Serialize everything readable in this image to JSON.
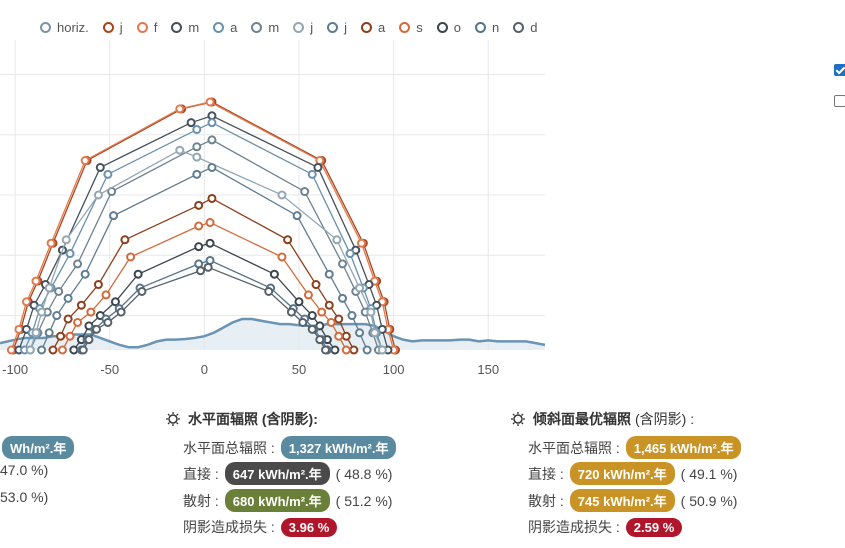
{
  "legend": [
    {
      "name": "horiz.",
      "color": "#7b95a8"
    },
    {
      "name": "j",
      "color": "#a9441a"
    },
    {
      "name": "f",
      "color": "#e07a4e"
    },
    {
      "name": "m",
      "color": "#44505a"
    },
    {
      "name": "a",
      "color": "#6a91ac"
    },
    {
      "name": "m",
      "color": "#6f828f"
    },
    {
      "name": "j",
      "color": "#93a6b3"
    },
    {
      "name": "j",
      "color": "#5f7c91"
    },
    {
      "name": "a",
      "color": "#8b3f1c"
    },
    {
      "name": "s",
      "color": "#d36a3c"
    },
    {
      "name": "o",
      "color": "#3b454d"
    },
    {
      "name": "n",
      "color": "#56738a"
    },
    {
      "name": "d",
      "color": "#57616a"
    }
  ],
  "chart_data": {
    "type": "line",
    "x_ticks": [
      -100,
      -50,
      0,
      50,
      100,
      150
    ],
    "xlim": [
      -108,
      180
    ],
    "ylim": [
      0,
      90
    ],
    "grid": true,
    "horizon": {
      "name": "horiz.",
      "x": [
        -108,
        -100,
        -95,
        -90,
        -85,
        -80,
        -75,
        -70,
        -65,
        -60,
        -55,
        -50,
        -45,
        -40,
        -35,
        -30,
        -25,
        -20,
        -15,
        -10,
        -5,
        0,
        5,
        10,
        15,
        20,
        25,
        30,
        35,
        40,
        45,
        50,
        55,
        60,
        65,
        70,
        75,
        80,
        85,
        90,
        95,
        100,
        105,
        110,
        115,
        120,
        125,
        130,
        135,
        140,
        145,
        150,
        155,
        160,
        165,
        170,
        175,
        180
      ],
      "y": [
        2,
        3,
        3.5,
        3.5,
        3.5,
        4,
        4,
        4.5,
        4.5,
        4.5,
        3.5,
        2.5,
        1.5,
        0.8,
        0.8,
        1.5,
        2.5,
        3,
        3,
        3.2,
        3.5,
        4,
        5,
        6.5,
        8,
        9,
        9,
        8.5,
        8,
        7.5,
        7.5,
        7.2,
        7,
        7,
        7.5,
        7.5,
        7.5,
        7.5,
        7.5,
        7,
        5.5,
        4,
        3,
        2.5,
        2.8,
        2.8,
        2.8,
        2.8,
        3,
        3,
        2.5,
        2.8,
        2.5,
        2.5,
        2.5,
        2.5,
        2,
        1.5
      ]
    },
    "series": [
      {
        "x": [
          -101,
          -97,
          -93,
          -88,
          -80,
          -62,
          -12,
          4,
          62,
          84,
          91,
          95,
          98,
          101
        ],
        "y": [
          0,
          6,
          14,
          20,
          31,
          55,
          70,
          72,
          55,
          31,
          20,
          14,
          6,
          0
        ]
      },
      {
        "x": [
          -102,
          -98,
          -94,
          -89,
          -81,
          -63,
          -13,
          3,
          61,
          83,
          90,
          94,
          97,
          100
        ],
        "y": [
          0,
          6,
          14,
          20,
          31,
          55,
          70,
          72,
          55,
          31,
          20,
          14,
          6,
          0
        ]
      },
      {
        "x": [
          -98,
          -94,
          -90,
          -84,
          -75,
          -55,
          -7,
          4,
          60,
          80,
          87,
          91,
          94,
          97
        ],
        "y": [
          0,
          6,
          13,
          19,
          29,
          53,
          66,
          68,
          53,
          29,
          19,
          13,
          6,
          0
        ]
      },
      {
        "x": [
          -95,
          -91,
          -87,
          -81,
          -71,
          -51,
          -4,
          4,
          57,
          77,
          84,
          88,
          91,
          94
        ],
        "y": [
          0,
          5,
          12,
          18,
          28,
          51,
          64,
          66,
          51,
          28,
          18,
          12,
          5,
          0
        ]
      },
      {
        "x": [
          -92,
          -88,
          -83,
          -77,
          -67,
          -49,
          -4,
          4,
          53,
          73,
          80,
          85,
          89,
          92
        ],
        "y": [
          0,
          5,
          11,
          17,
          25,
          46,
          59,
          61,
          46,
          25,
          17,
          11,
          5,
          0
        ]
      },
      {
        "x": [
          -92,
          -89,
          -86,
          -82,
          -73,
          -56,
          -13,
          -4,
          41,
          70,
          82,
          88,
          90,
          94
        ],
        "y": [
          0,
          5,
          11,
          18,
          32,
          45,
          58,
          56,
          45,
          32,
          18,
          11,
          5,
          0
        ]
      },
      {
        "x": [
          -86,
          -82,
          -78,
          -72,
          -63,
          -48,
          -4,
          4,
          49,
          66,
          73,
          78,
          82,
          86
        ],
        "y": [
          0,
          5,
          10,
          15,
          22,
          39,
          51,
          53,
          39,
          22,
          15,
          10,
          5,
          0
        ]
      },
      {
        "x": [
          -80,
          -76,
          -72,
          -65,
          -56,
          -42,
          -3,
          4,
          44,
          59,
          66,
          71,
          75,
          79
        ],
        "y": [
          0,
          4,
          9,
          13,
          19,
          32,
          42,
          44,
          32,
          19,
          13,
          9,
          4,
          0
        ]
      },
      {
        "x": [
          -75,
          -71,
          -67,
          -60,
          -52,
          -39,
          -3,
          3,
          41,
          55,
          62,
          67,
          71,
          75
        ],
        "y": [
          0,
          4,
          8,
          11,
          16,
          27,
          36,
          37,
          27,
          16,
          11,
          8,
          4,
          0
        ]
      },
      {
        "x": [
          -69,
          -65,
          -61,
          -55,
          -47,
          -35,
          -3,
          3,
          37,
          50,
          57,
          61,
          65,
          69
        ],
        "y": [
          0,
          3,
          7,
          10,
          14,
          22,
          30,
          31,
          22,
          14,
          10,
          7,
          3,
          0
        ]
      },
      {
        "x": [
          -65,
          -62,
          -58,
          -52,
          -45,
          -34,
          -3,
          3,
          35,
          47,
          53,
          58,
          62,
          65
        ],
        "y": [
          0,
          3,
          6,
          9,
          12,
          18,
          25,
          26,
          18,
          12,
          9,
          6,
          3,
          0
        ]
      },
      {
        "x": [
          -64,
          -61,
          -57,
          -51,
          -44,
          -33,
          -2,
          2,
          34,
          46,
          52,
          57,
          61,
          64
        ],
        "y": [
          0,
          3,
          6,
          8,
          11,
          17,
          23,
          24,
          17,
          11,
          8,
          6,
          3,
          0
        ]
      }
    ]
  },
  "checkboxes": [
    {
      "checked": true
    },
    {
      "checked": false
    }
  ],
  "left_panel": {
    "pill1": "Wh/m².年",
    "paren1": "47.0 %)",
    "paren2": "53.0 %)",
    "pill_color": "#5a8aa0"
  },
  "mid_panel": {
    "title": "水平面辐照 (含阴影):",
    "total_label": "水平面总辐照 :",
    "total_value": "1,327 kWh/m².年",
    "total_color": "#5a8aa0",
    "direct_label": "直接 :",
    "direct_value": "647 kWh/m².年",
    "direct_color": "#4a4a4a",
    "direct_pct": "( 48.8 %)",
    "diffuse_label": "散射 :",
    "diffuse_value": "680 kWh/m².年",
    "diffuse_color": "#6a7f37",
    "diffuse_pct": "( 51.2 %)",
    "loss_label": "阴影造成损失 :",
    "loss_value": "3.96 %",
    "loss_color": "#b0162b"
  },
  "right_panel": {
    "title_bold": "倾斜面最优辐照",
    "title_rest": "(含阴影) :",
    "total_label": "水平面总辐照 :",
    "total_value": "1,465 kWh/m².年",
    "total_color": "#c99425",
    "direct_label": "直接 :",
    "direct_value": "720 kWh/m².年",
    "direct_color": "#c99425",
    "direct_pct": "( 49.1 %)",
    "diffuse_label": "散射 :",
    "diffuse_value": "745 kWh/m².年",
    "diffuse_color": "#c99425",
    "diffuse_pct": "( 50.9 %)",
    "loss_label": "阴影造成损失 :",
    "loss_value": "2.59 %",
    "loss_color": "#b0162b"
  }
}
